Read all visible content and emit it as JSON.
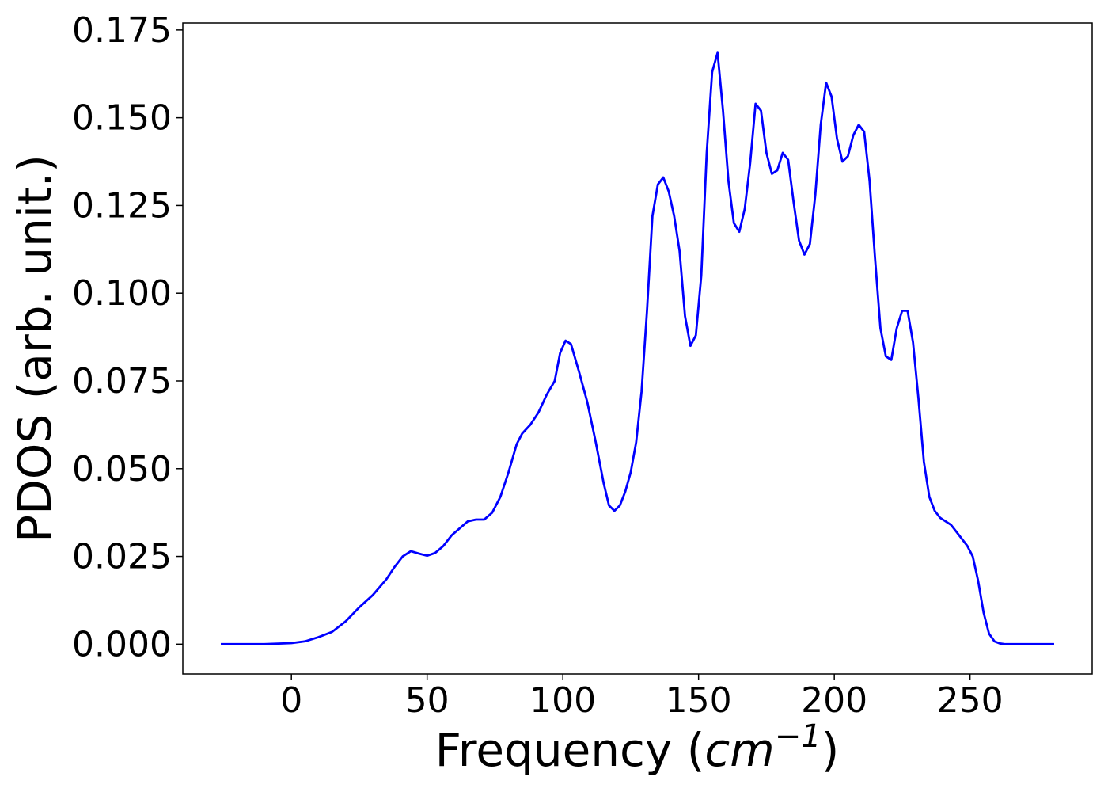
{
  "chart_data": {
    "type": "line",
    "xlabel": {
      "prefix": "Frequency (",
      "var": "cm",
      "exp": "−1",
      "suffix": ")"
    },
    "ylabel": "PDOS (arb. unit.)",
    "xlim": [
      -40,
      295
    ],
    "ylim": [
      -0.0085,
      0.177
    ],
    "xticks": [
      0,
      50,
      100,
      150,
      200,
      250
    ],
    "xtick_labels": [
      "0",
      "50",
      "100",
      "150",
      "200",
      "250"
    ],
    "yticks": [
      0.0,
      0.025,
      0.05,
      0.075,
      0.1,
      0.125,
      0.15,
      0.175
    ],
    "ytick_labels": [
      "0.000",
      "0.025",
      "0.050",
      "0.075",
      "0.100",
      "0.125",
      "0.150",
      "0.175"
    ],
    "grid": false,
    "legend": "none",
    "series": [
      {
        "color": "#0000ff",
        "x": [
          -26,
          -10,
          0,
          5,
          10,
          15,
          20,
          25,
          30,
          35,
          38,
          41,
          44,
          47,
          50,
          53,
          56,
          59,
          62,
          65,
          68,
          71,
          74,
          77,
          80,
          83,
          85,
          88,
          91,
          94,
          97,
          99,
          101,
          103,
          106,
          109,
          112,
          115,
          117,
          119,
          121,
          123,
          125,
          127,
          129,
          131,
          133,
          135,
          137,
          139,
          141,
          143,
          145,
          147,
          149,
          151,
          153,
          155,
          157,
          159,
          161,
          163,
          165,
          167,
          169,
          171,
          173,
          175,
          177,
          179,
          181,
          183,
          185,
          187,
          189,
          191,
          193,
          195,
          197,
          199,
          201,
          203,
          205,
          207,
          209,
          211,
          213,
          215,
          217,
          219,
          221,
          223,
          225,
          227,
          229,
          231,
          233,
          235,
          237,
          239,
          241,
          243,
          245,
          247,
          249,
          251,
          253,
          255,
          257,
          259,
          261,
          263,
          270,
          281
        ],
        "y": [
          0,
          0,
          0.0003,
          0.0008,
          0.002,
          0.0035,
          0.0065,
          0.0105,
          0.014,
          0.0185,
          0.022,
          0.025,
          0.0265,
          0.0258,
          0.0252,
          0.026,
          0.028,
          0.031,
          0.033,
          0.035,
          0.0355,
          0.0355,
          0.0375,
          0.042,
          0.049,
          0.057,
          0.06,
          0.0625,
          0.066,
          0.071,
          0.075,
          0.083,
          0.0865,
          0.0855,
          0.0775,
          0.069,
          0.058,
          0.046,
          0.0395,
          0.038,
          0.0395,
          0.0435,
          0.049,
          0.0575,
          0.072,
          0.095,
          0.122,
          0.131,
          0.133,
          0.129,
          0.122,
          0.112,
          0.0935,
          0.085,
          0.088,
          0.105,
          0.14,
          0.163,
          0.1685,
          0.152,
          0.132,
          0.12,
          0.1175,
          0.124,
          0.137,
          0.154,
          0.152,
          0.14,
          0.134,
          0.135,
          0.14,
          0.138,
          0.126,
          0.115,
          0.111,
          0.114,
          0.128,
          0.148,
          0.16,
          0.156,
          0.144,
          0.1375,
          0.139,
          0.145,
          0.148,
          0.146,
          0.132,
          0.11,
          0.09,
          0.082,
          0.081,
          0.09,
          0.095,
          0.095,
          0.086,
          0.07,
          0.052,
          0.042,
          0.038,
          0.036,
          0.035,
          0.034,
          0.032,
          0.03,
          0.028,
          0.025,
          0.018,
          0.009,
          0.003,
          0.0008,
          0.0002,
          0,
          0,
          0
        ]
      }
    ]
  }
}
